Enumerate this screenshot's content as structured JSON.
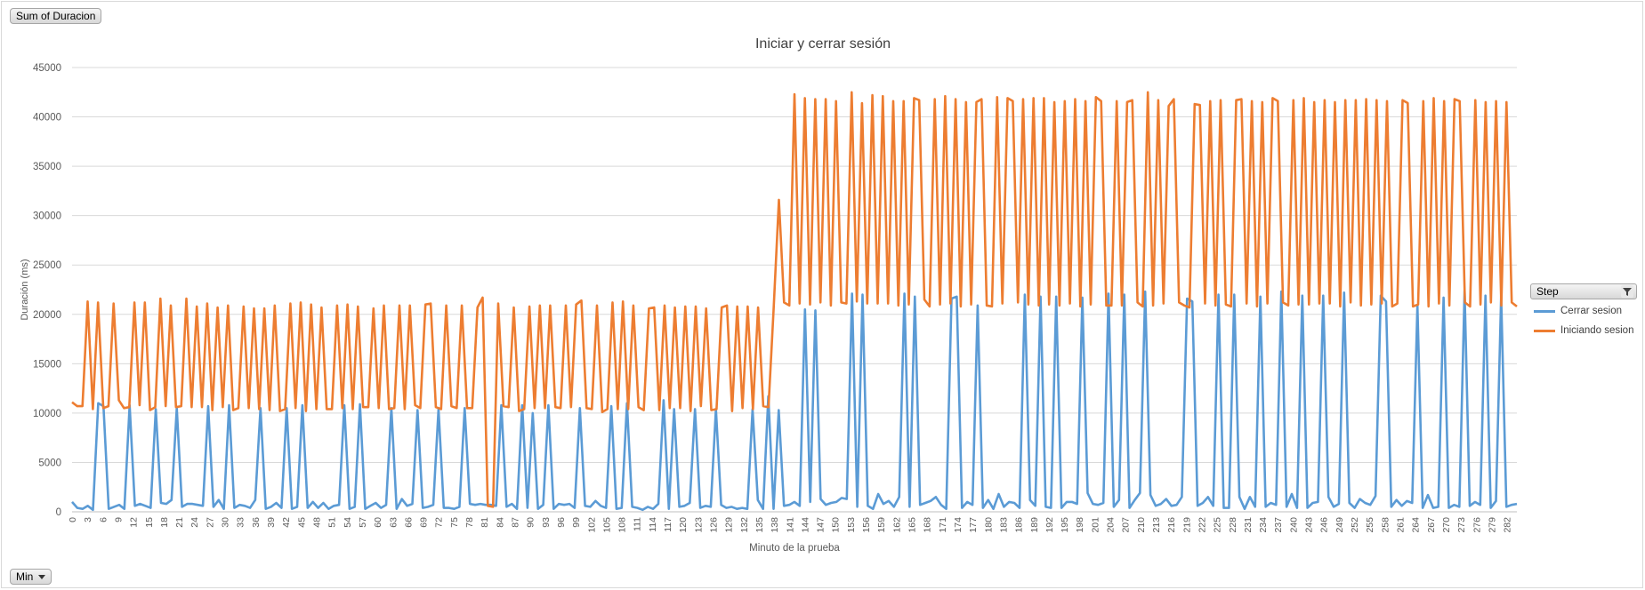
{
  "buttons": {
    "value_field": "Sum of Duracion",
    "row_field": "Min"
  },
  "legend_title": "Step",
  "icons": {
    "legend_filter": "filter-icon",
    "dropdown": "chevron-down-icon"
  },
  "colors": {
    "cerrar": "#5b9bd5",
    "iniciando": "#ed7d31",
    "grid": "#d9d9d9",
    "axis_text": "#595959"
  },
  "chart_data": {
    "type": "line",
    "title": "Iniciar y cerrar sesión",
    "xlabel": "Minuto de la prueba",
    "ylabel": "Duración (ms)",
    "ylim": [
      0,
      45000
    ],
    "yticks": [
      0,
      5000,
      10000,
      15000,
      20000,
      25000,
      30000,
      35000,
      40000,
      45000
    ],
    "x_range": [
      0,
      284
    ],
    "x_tick_step": 3,
    "grid": true,
    "legend_position": "right",
    "series": [
      {
        "name": "Cerrar sesion",
        "color": "#5b9bd5",
        "values": [
          1000,
          400,
          300,
          600,
          200,
          11000,
          10700,
          300,
          500,
          700,
          300,
          10800,
          600,
          800,
          600,
          400,
          10400,
          900,
          800,
          1200,
          10500,
          500,
          800,
          800,
          700,
          600,
          10700,
          500,
          1200,
          300,
          10800,
          400,
          700,
          600,
          400,
          1200,
          10500,
          300,
          500,
          900,
          400,
          10500,
          300,
          500,
          10800,
          400,
          1000,
          400,
          900,
          300,
          600,
          700,
          10800,
          300,
          500,
          10900,
          300,
          600,
          900,
          400,
          700,
          10500,
          300,
          1300,
          600,
          800,
          10300,
          400,
          500,
          700,
          10400,
          400,
          400,
          300,
          500,
          10500,
          800,
          700,
          800,
          700,
          700,
          600,
          10800,
          500,
          800,
          300,
          10800,
          400,
          10000,
          300,
          700,
          10800,
          300,
          800,
          700,
          800,
          400,
          10500,
          600,
          500,
          1100,
          600,
          400,
          10700,
          300,
          400,
          11000,
          500,
          400,
          200,
          500,
          300,
          800,
          11300,
          300,
          10400,
          500,
          600,
          900,
          10400,
          400,
          600,
          500,
          10400,
          700,
          400,
          500,
          300,
          400,
          300,
          10400,
          1200,
          300,
          11700,
          300,
          10300,
          600,
          700,
          1000,
          600,
          20500,
          1000,
          20400,
          1300,
          700,
          900,
          1000,
          1400,
          1300,
          22100,
          500,
          22000,
          600,
          300,
          1800,
          800,
          1100,
          500,
          1500,
          22100,
          500,
          21800,
          700,
          900,
          1100,
          1500,
          700,
          300,
          21600,
          21800,
          400,
          1000,
          700,
          20900,
          400,
          1200,
          300,
          1800,
          500,
          1000,
          900,
          400,
          22000,
          1200,
          600,
          21800,
          500,
          400,
          21800,
          400,
          1000,
          1000,
          800,
          21700,
          1900,
          800,
          700,
          900,
          22100,
          500,
          1200,
          22000,
          400,
          1200,
          1900,
          22300,
          1700,
          600,
          800,
          1300,
          600,
          700,
          1500,
          21600,
          21300,
          600,
          900,
          1500,
          600,
          22000,
          400,
          400,
          22000,
          1500,
          300,
          1500,
          500,
          21800,
          500,
          900,
          700,
          22300,
          500,
          1800,
          400,
          21900,
          400,
          900,
          1000,
          21900,
          1500,
          500,
          800,
          22200,
          900,
          400,
          1300,
          900,
          700,
          1600,
          21900,
          21300,
          500,
          1200,
          600,
          1100,
          900,
          20900,
          400,
          1700,
          400,
          500,
          21700,
          400,
          700,
          500,
          22400,
          600,
          1000,
          700,
          21900,
          400,
          1100,
          21900,
          500,
          700,
          800
        ]
      },
      {
        "name": "Iniciando sesion",
        "color": "#ed7d31",
        "values": [
          11100,
          10700,
          10700,
          21300,
          10400,
          21200,
          10500,
          10700,
          21100,
          11300,
          10500,
          10600,
          21200,
          10800,
          21200,
          10300,
          10600,
          21600,
          10700,
          20900,
          10600,
          10700,
          21600,
          10600,
          20800,
          10600,
          21100,
          10300,
          20700,
          10600,
          20900,
          10300,
          10500,
          20800,
          10500,
          20600,
          10400,
          20600,
          10300,
          20900,
          10200,
          10400,
          21100,
          10500,
          21200,
          10200,
          21000,
          10400,
          20700,
          10400,
          10400,
          20900,
          10500,
          21000,
          10400,
          20800,
          10600,
          10600,
          20600,
          10500,
          20900,
          10400,
          10500,
          20900,
          10400,
          20900,
          10800,
          10500,
          21000,
          21100,
          10600,
          10400,
          20900,
          10700,
          10500,
          20900,
          10500,
          10500,
          20700,
          21700,
          600,
          500,
          21100,
          10700,
          10600,
          20700,
          10200,
          10400,
          20800,
          10500,
          20900,
          10500,
          20900,
          10600,
          10500,
          20900,
          10600,
          21000,
          21400,
          10500,
          10400,
          20900,
          10100,
          10400,
          21200,
          10400,
          21300,
          10400,
          20900,
          10600,
          10300,
          20600,
          20700,
          10300,
          20900,
          10500,
          20700,
          10500,
          20800,
          10200,
          20800,
          10700,
          20600,
          10300,
          10400,
          20700,
          20900,
          10200,
          20800,
          10500,
          20800,
          10400,
          20700,
          10700,
          10600,
          20600,
          31600,
          21200,
          20900,
          42300,
          21100,
          41900,
          21000,
          41800,
          21200,
          41800,
          20900,
          41600,
          21200,
          21100,
          42500,
          21300,
          41400,
          21100,
          42200,
          21100,
          42100,
          21100,
          41600,
          20900,
          41600,
          21000,
          41900,
          41700,
          21500,
          20800,
          41800,
          21000,
          42100,
          21100,
          41800,
          20800,
          41500,
          21000,
          41500,
          41800,
          20900,
          20800,
          42000,
          21100,
          41900,
          41600,
          21200,
          41800,
          21000,
          41900,
          20900,
          41900,
          21000,
          41500,
          20900,
          41600,
          21100,
          41800,
          20800,
          41600,
          21000,
          42000,
          41600,
          20900,
          20900,
          41600,
          20900,
          41500,
          41700,
          21200,
          20800,
          42500,
          20900,
          41700,
          21100,
          41100,
          41800,
          21200,
          20900,
          20700,
          41300,
          41200,
          21100,
          41600,
          20900,
          41700,
          21000,
          20800,
          41700,
          41800,
          21100,
          41600,
          20800,
          41500,
          21100,
          41900,
          41600,
          21200,
          20900,
          41700,
          21000,
          41900,
          21000,
          41500,
          21100,
          41700,
          21100,
          41500,
          20800,
          41700,
          21200,
          41700,
          20900,
          41800,
          21000,
          41700,
          21100,
          41600,
          20800,
          21100,
          41700,
          41400,
          20800,
          21000,
          41600,
          20800,
          41900,
          21100,
          41600,
          20900,
          41800,
          41600,
          21200,
          20800,
          41700,
          21000,
          41500,
          21200,
          41600,
          20900,
          41500,
          21200,
          20800
        ]
      }
    ]
  }
}
